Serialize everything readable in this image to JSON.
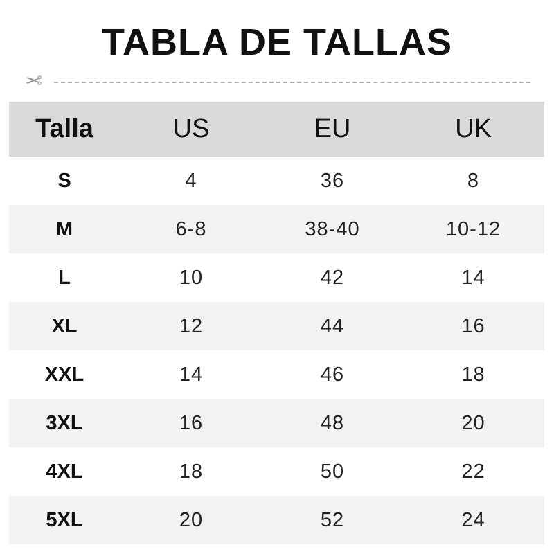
{
  "title": "TABLA DE TALLAS",
  "icons": {
    "cut": "scissors-icon"
  },
  "colors": {
    "header_bg": "#d9d9d9",
    "alt_row_bg": "#f2f2f2"
  },
  "table": {
    "headers": [
      "Talla",
      "US",
      "EU",
      "UK"
    ],
    "rows": [
      [
        "S",
        "4",
        "36",
        "8"
      ],
      [
        "M",
        "6-8",
        "38-40",
        "10-12"
      ],
      [
        "L",
        "10",
        "42",
        "14"
      ],
      [
        "XL",
        "12",
        "44",
        "16"
      ],
      [
        "XXL",
        "14",
        "46",
        "18"
      ],
      [
        "3XL",
        "16",
        "48",
        "20"
      ],
      [
        "4XL",
        "18",
        "50",
        "22"
      ],
      [
        "5XL",
        "20",
        "52",
        "24"
      ]
    ]
  }
}
